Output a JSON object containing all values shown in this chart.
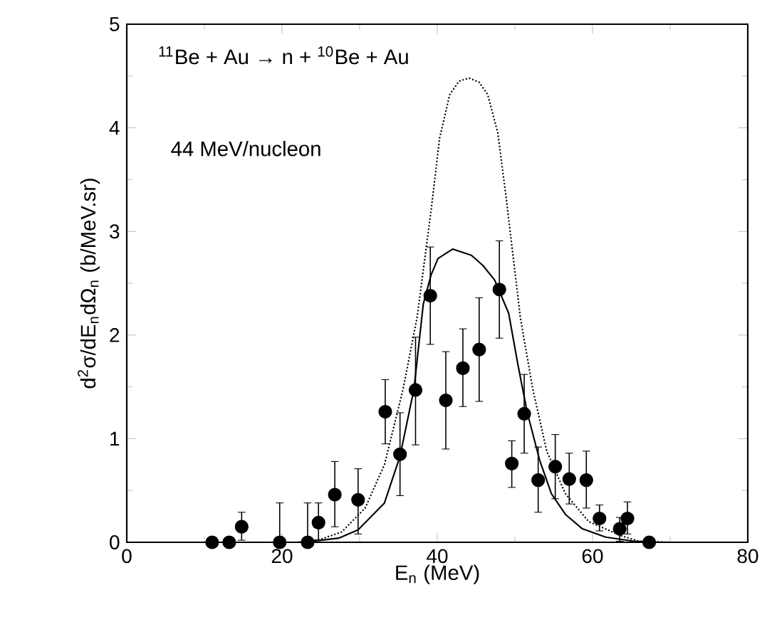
{
  "chart_data": {
    "type": "scatter",
    "xlabel": "E$_{n}$ (MeV)",
    "ylabel": "d$^{2}$σ/dE$_{n}$dΩ$_{n}$ (b/MeV.sr)",
    "annotations": [
      "$^{11}$Be + Au → n + $^{10}$Be + Au",
      "44 MeV/nucleon"
    ],
    "xlim": [
      0,
      80
    ],
    "xticks": [
      0,
      20,
      40,
      60,
      80
    ],
    "ylim": [
      0,
      5
    ],
    "yticks": [
      0,
      1,
      2,
      3,
      4,
      5
    ],
    "grid": false,
    "series": [
      {
        "color": "#000000",
        "marker": "circle",
        "x": [
          11.0,
          13.2,
          14.8,
          19.7,
          23.3,
          24.7,
          26.8,
          29.8,
          33.3,
          35.2,
          37.2,
          39.1,
          41.1,
          43.3,
          45.4,
          48.0,
          49.6,
          51.2,
          53.0,
          55.2,
          57.0,
          59.2,
          60.9,
          63.5,
          64.5,
          67.3
        ],
        "values": [
          0,
          0,
          0.15,
          0,
          0,
          0.19,
          0.46,
          0.41,
          1.26,
          0.85,
          1.47,
          2.38,
          1.37,
          1.68,
          1.86,
          2.44,
          0.76,
          1.24,
          0.6,
          0.73,
          0.61,
          0.6,
          0.23,
          0.13,
          0.23,
          0
        ],
        "errors": [
          null,
          null,
          [
            0.02,
            0.29
          ],
          [
            0,
            0.38
          ],
          [
            0,
            0.38
          ],
          [
            0.02,
            0.38
          ],
          [
            0.15,
            0.78
          ],
          [
            0.08,
            0.71
          ],
          [
            0.95,
            1.57
          ],
          [
            0.45,
            1.25
          ],
          [
            0.94,
            1.98
          ],
          [
            1.91,
            2.85
          ],
          [
            0.9,
            1.84
          ],
          [
            1.31,
            2.06
          ],
          [
            1.36,
            2.36
          ],
          [
            1.97,
            2.91
          ],
          [
            0.53,
            0.98
          ],
          [
            0.86,
            1.62
          ],
          [
            0.29,
            0.92
          ],
          [
            0.42,
            1.04
          ],
          [
            0.37,
            0.86
          ],
          [
            0.33,
            0.88
          ],
          [
            0.11,
            0.36
          ],
          [
            0.01,
            0.24
          ],
          [
            0.08,
            0.39
          ],
          null
        ]
      },
      {
        "type": "line",
        "color": "#000000",
        "line_style": "solid",
        "x": [
          22,
          25,
          27.3,
          29.8,
          33.2,
          35.2,
          37.0,
          38.2,
          39.2,
          40.1,
          42.0,
          44.4,
          45.9,
          47.4,
          49.2,
          50.4,
          51.6,
          53.2,
          54.7,
          56.5,
          58.7,
          61.7,
          65.3,
          68.6
        ],
        "values": [
          0,
          0.02,
          0.04,
          0.12,
          0.38,
          0.83,
          1.48,
          2.3,
          2.58,
          2.74,
          2.83,
          2.77,
          2.67,
          2.53,
          2.21,
          1.71,
          1.25,
          0.79,
          0.47,
          0.27,
          0.13,
          0.05,
          0.01,
          0
        ]
      },
      {
        "type": "line",
        "color": "#000000",
        "line_style": "dotted",
        "x": [
          22,
          25,
          27.7,
          30.7,
          33.2,
          35.6,
          37.4,
          39.2,
          40.3,
          41.6,
          42.8,
          44.1,
          45.4,
          46.5,
          47.8,
          48.9,
          50.7,
          52.3,
          54.1,
          56.5,
          59.5,
          63.8,
          66,
          70
        ],
        "values": [
          0,
          0.03,
          0.1,
          0.33,
          0.75,
          1.48,
          2.17,
          3.2,
          3.9,
          4.32,
          4.45,
          4.48,
          4.44,
          4.32,
          3.95,
          3.31,
          2.17,
          1.48,
          0.88,
          0.47,
          0.2,
          0.06,
          0.01,
          0
        ]
      }
    ]
  }
}
